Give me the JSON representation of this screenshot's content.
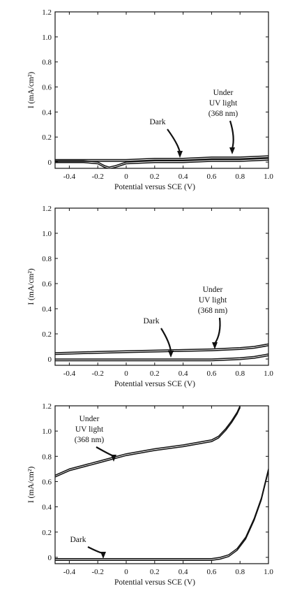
{
  "chart_data": [
    {
      "type": "line",
      "xlabel": "Potential versus SCE (V)",
      "ylabel": "I (mA/cm²)",
      "xlim": [
        -0.5,
        1.0
      ],
      "ylim": [
        -0.05,
        1.2
      ],
      "xticks": [
        "-0.4",
        "-0.2",
        "0",
        "0.2",
        "0.4",
        "0.6",
        "0.8",
        "1.0"
      ],
      "yticks": [
        "0",
        "0.2",
        "0.4",
        "0.6",
        "0.8",
        "1.0",
        "1.2"
      ],
      "grid": false,
      "series": [
        {
          "name": "Dark",
          "x": [
            -0.5,
            -0.3,
            -0.2,
            -0.15,
            -0.12,
            -0.08,
            0.0,
            0.2,
            0.4,
            0.6,
            0.8,
            1.0
          ],
          "y": [
            0.01,
            0.01,
            0.0,
            -0.03,
            -0.04,
            -0.03,
            0.0,
            0.01,
            0.01,
            0.02,
            0.02,
            0.03
          ]
        },
        {
          "name": "Under UV light (368 nm)",
          "x": [
            -0.5,
            -0.2,
            0.0,
            0.2,
            0.4,
            0.6,
            0.8,
            1.0
          ],
          "y": [
            0.02,
            0.02,
            0.02,
            0.03,
            0.03,
            0.04,
            0.04,
            0.05
          ]
        }
      ],
      "annotations": [
        {
          "text": [
            "Dark"
          ],
          "x": 0.36,
          "y": 0.04
        },
        {
          "text": [
            "Under",
            "UV light",
            "(368 nm)"
          ],
          "x": 0.76,
          "y": 0.06
        }
      ]
    },
    {
      "type": "line",
      "xlabel": "Potential versus SCE (V)",
      "ylabel": "I (mA/cm²)",
      "xlim": [
        -0.5,
        1.0
      ],
      "ylim": [
        -0.05,
        1.2
      ],
      "xticks": [
        "-0.4",
        "-0.2",
        "0",
        "0.2",
        "0.4",
        "0.6",
        "0.8",
        "1.0"
      ],
      "yticks": [
        "0",
        "0.2",
        "0.4",
        "0.6",
        "0.8",
        "1.0",
        "1.2"
      ],
      "grid": false,
      "series": [
        {
          "name": "Dark",
          "x": [
            -0.5,
            -0.2,
            0.0,
            0.2,
            0.4,
            0.6,
            0.8,
            0.9,
            1.0
          ],
          "y": [
            0.0,
            0.0,
            0.0,
            0.0,
            0.0,
            0.0,
            0.01,
            0.02,
            0.04
          ]
        },
        {
          "name": "Under UV light (368 nm)",
          "x": [
            -0.5,
            -0.2,
            0.0,
            0.2,
            0.4,
            0.6,
            0.8,
            0.9,
            1.0
          ],
          "y": [
            0.05,
            0.06,
            0.065,
            0.07,
            0.075,
            0.08,
            0.09,
            0.1,
            0.12
          ]
        }
      ],
      "annotations": [
        {
          "text": [
            "Dark"
          ],
          "x": 0.33,
          "y": 0.01
        },
        {
          "text": [
            "Under",
            "UV light",
            "(368 nm)"
          ],
          "x": 0.62,
          "y": 0.09
        }
      ]
    },
    {
      "type": "line",
      "xlabel": "Potential versus SCE (V)",
      "ylabel": "I (mA/cm²)",
      "xlim": [
        -0.5,
        1.0
      ],
      "ylim": [
        -0.05,
        1.2
      ],
      "xticks": [
        "-0.4",
        "-0.2",
        "0",
        "0.2",
        "0.4",
        "0.6",
        "0.8",
        "1.0"
      ],
      "yticks": [
        "0",
        "0.2",
        "0.4",
        "0.6",
        "0.8",
        "1.0",
        "1.2"
      ],
      "grid": false,
      "series": [
        {
          "name": "Dark",
          "x": [
            -0.5,
            -0.2,
            0.0,
            0.2,
            0.4,
            0.6,
            0.66,
            0.72,
            0.78,
            0.84,
            0.9,
            0.95,
            1.0
          ],
          "y": [
            -0.01,
            -0.01,
            -0.01,
            -0.01,
            -0.01,
            -0.01,
            0.0,
            0.02,
            0.07,
            0.16,
            0.31,
            0.47,
            0.7
          ]
        },
        {
          "name": "Under UV light (368 nm)",
          "x": [
            -0.5,
            -0.4,
            -0.3,
            -0.2,
            -0.1,
            0.0,
            0.1,
            0.2,
            0.3,
            0.4,
            0.5,
            0.6,
            0.65,
            0.7,
            0.74,
            0.78,
            0.8
          ],
          "y": [
            0.65,
            0.7,
            0.73,
            0.76,
            0.79,
            0.82,
            0.84,
            0.86,
            0.875,
            0.89,
            0.91,
            0.93,
            0.96,
            1.02,
            1.08,
            1.15,
            1.2
          ]
        }
      ],
      "annotations": [
        {
          "text": [
            "Dark"
          ],
          "x": -0.17,
          "y": 0.0
        },
        {
          "text": [
            "Under",
            "UV light",
            "(368 nm)"
          ],
          "x": -0.12,
          "y": 0.83
        }
      ]
    }
  ]
}
